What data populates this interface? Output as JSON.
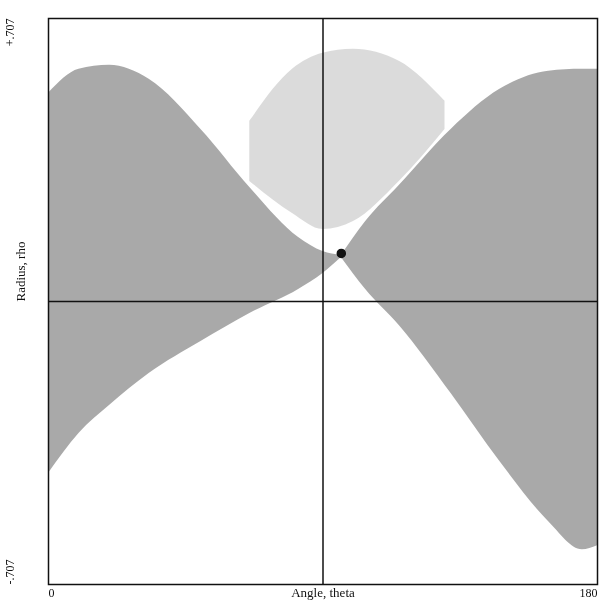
{
  "chart_data": {
    "type": "area",
    "xlabel": "Angle, theta",
    "ylabel": "Radius, rho",
    "xlim": [
      0,
      180
    ],
    "ylim": [
      -0.707,
      0.707
    ],
    "xticks": [
      0,
      180
    ],
    "yticks": [
      {
        "value": -0.707,
        "label": "-.707"
      },
      {
        "value": 0.707,
        "label": "+.707"
      }
    ],
    "grid": false,
    "reference_lines": {
      "x": [
        90
      ],
      "y": [
        0
      ]
    },
    "series": [
      {
        "color": "#cfcfcf",
        "x": [
          66,
          80,
          90,
          100,
          115,
          130
        ],
        "y1": [
          0.3,
          0.22,
          0.18,
          0.2,
          0.3,
          0.43
        ],
        "y2": [
          0.45,
          0.58,
          0.62,
          0.63,
          0.6,
          0.5
        ]
      },
      {
        "color": "#8c8c8c",
        "x": [
          0,
          10,
          20,
          33,
          50,
          66,
          82,
          90,
          96
        ],
        "y1": [
          -0.43,
          -0.33,
          -0.26,
          -0.18,
          -0.1,
          -0.03,
          0.03,
          0.07,
          0.11
        ],
        "y2": [
          0.52,
          0.58,
          0.59,
          0.555,
          0.43,
          0.285,
          0.16,
          0.125,
          0.115
        ]
      },
      {
        "color": "#8c8c8c",
        "x": [
          96,
          104,
          115,
          132,
          148,
          164,
          175,
          180
        ],
        "y1": [
          0.11,
          0.03,
          -0.06,
          -0.23,
          -0.4,
          -0.55,
          -0.62,
          -0.61
        ],
        "y2": [
          0.115,
          0.2,
          0.29,
          0.43,
          0.53,
          0.575,
          0.58,
          0.58
        ]
      }
    ],
    "points": {
      "x": [
        96
      ],
      "y": [
        0.12
      ],
      "color": "#111111",
      "marker": "circle"
    }
  }
}
